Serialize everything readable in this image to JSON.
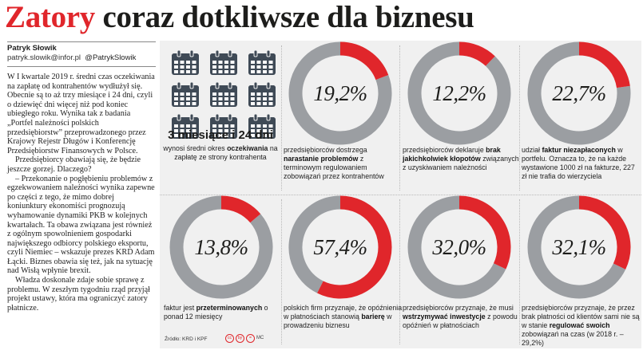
{
  "headline": {
    "accent": "Zatory",
    "rest": " coraz dotkliwsze dla biznesu"
  },
  "author": {
    "name": "Patryk Słowik",
    "contact": "patryk.slowik@infor.pl",
    "handle": "@PatrykSlowik"
  },
  "article": {
    "paragraphs": [
      "W I kwartale 2019 r. średni czas oczekiwania na zapłatę od kontrahentów wydłużył się. Obecnie są to aż trzy miesiące i 24 dni, czyli o dziewięć dni więcej niż pod koniec ubiegłego roku. Wynika tak z badania „Portfel należności polskich przedsiębiorstw” przeprowadzonego przez Krajowy Rejestr Długów i Konferencję Przedsiębiorstw Finansowych w Polsce.",
      "Przedsiębiorcy obawiają się, że będzie jeszcze gorzej. Dlaczego?",
      "– Przekonanie o pogłębieniu problemów z egzekwowaniem należności wynika zapewne po części z tego, że mimo dobrej koniunktury ekonomiści prognozują wyhamowanie dynamiki PKB w kolejnych kwartałach. Ta obawa związana jest również z ogólnym spowolnieniem gospodarki największego odbiorcy polskiego eksportu, czyli Niemiec – wskazuje prezes KRD Adam Łącki. Biznes obawia się też, jak na sytuację nad Wisłą wpłynie brexit.",
      "Władza doskonale zdaje sobie sprawę z problemu. W zeszłym tygodniu rząd przyjął projekt ustawy, która ma ograniczyć zatory płatnicze."
    ]
  },
  "payment_wait": {
    "value": "3 miesiące i 24 dni",
    "desc_before": "wynosi średni okres ",
    "desc_bold": "oczekiwania",
    "desc_after": " na zapłatę ze strony kontrahenta"
  },
  "chart_data": {
    "type": "pie",
    "style": "donut",
    "unit": "%",
    "colors": {
      "highlight": "#e0262b",
      "remainder": "#9b9ea2"
    },
    "items": [
      {
        "value": 19.2,
        "label": "19,2%",
        "caption_before": "przedsiębiorców dostrzega ",
        "caption_bold": "narastanie problemów",
        "caption_after": " z terminowym regulowaniem zobowiązań przez kontrahentów"
      },
      {
        "value": 12.2,
        "label": "12,2%",
        "caption_before": "przedsiębiorców deklaruje ",
        "caption_bold": "brak jakichkolwiek kłopotów",
        "caption_after": " związanych z uzyskiwaniem należności"
      },
      {
        "value": 22.7,
        "label": "22,7%",
        "caption_before": "udział ",
        "caption_bold": "faktur niezapłaconych",
        "caption_after": " w portfelu. Oznacza to, że na każde wystawione 1000 zł na fakturze, 227 zł nie trafia do wierzyciela"
      },
      {
        "value": 13.8,
        "label": "13,8%",
        "caption_before": "faktur jest ",
        "caption_bold": "przeterminowanych",
        "caption_after": " o ponad 12 miesięcy"
      },
      {
        "value": 57.4,
        "label": "57,4%",
        "caption_before": "polskich firm przyznaje, że opóźnienia w płatnościach stanowią ",
        "caption_bold": "barierę",
        "caption_after": " w prowadzeniu biznesu"
      },
      {
        "value": 32.0,
        "label": "32,0%",
        "caption_before": "przedsiębiorców przyznaje, że musi ",
        "caption_bold": "wstrzymywać inwestycje",
        "caption_after": " z powodu opóźnień w płatnościach"
      },
      {
        "value": 32.1,
        "label": "32,1%",
        "caption_before": "przedsiębiorców przyznaje, że przez brak płatności od klientów sami nie są w stanie ",
        "caption_bold": "regulować swoich",
        "caption_after": " zobowiązań na czas (w 2018 r. – 29,2%)"
      }
    ]
  },
  "source": "Źródło: KRD i KPF",
  "license": "MC"
}
